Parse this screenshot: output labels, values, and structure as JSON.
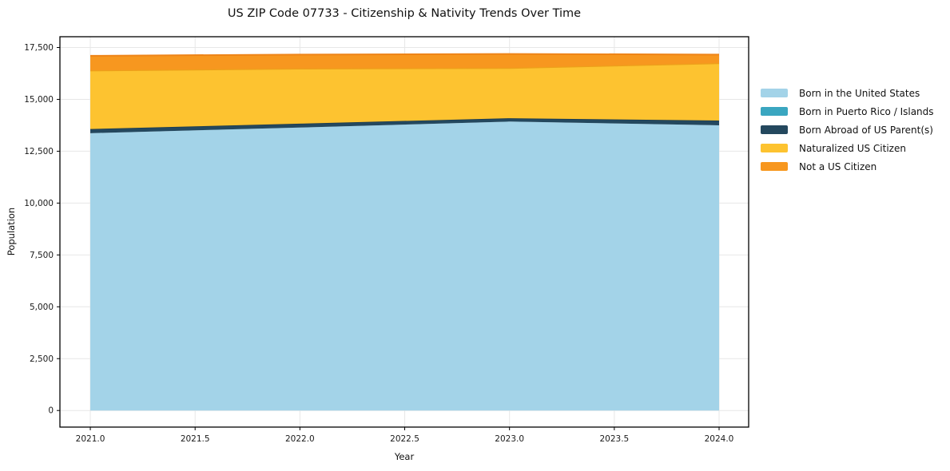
{
  "colors": {
    "background": "#ffffff",
    "grid": "#e7e7e7",
    "spine": "#000000",
    "text": "#1a1a1a"
  },
  "chart_data": {
    "type": "area",
    "stacked": true,
    "title": "US ZIP Code 07733 - Citizenship & Nativity Trends Over Time",
    "xlabel": "Year",
    "ylabel": "Population",
    "legend_position": "right-outside",
    "grid": true,
    "x": [
      2021,
      2022,
      2023,
      2024
    ],
    "series": [
      {
        "name": "Born in the United States",
        "color": "#a3d3e8",
        "values": [
          13370,
          13640,
          13930,
          13750
        ]
      },
      {
        "name": "Born in Puerto Rico / Islands",
        "color": "#3aa6c0",
        "values": [
          0,
          0,
          0,
          0
        ]
      },
      {
        "name": "Born Abroad of US Parent(s)",
        "color": "#24485e",
        "edge": "#1d3c4e",
        "edge_width": 1.5,
        "values": [
          200,
          190,
          160,
          230
        ]
      },
      {
        "name": "Naturalized US Citizen",
        "color": "#fdc330",
        "edge": "#eda01a",
        "edge_width": 2.5,
        "values": [
          2830,
          2660,
          2430,
          2770
        ]
      },
      {
        "name": "Not a US Citizen",
        "color": "#f7971f",
        "edge": "#ee8418",
        "edge_width": 2,
        "values": [
          700,
          670,
          670,
          410
        ]
      }
    ],
    "xlim": [
      2020.855,
      2024.141
    ],
    "ylim": [
      -800,
      18020
    ],
    "x_ticks": {
      "values": [
        2021,
        2021.5,
        2022,
        2022.5,
        2023,
        2023.5,
        2024
      ],
      "labels": [
        "2021.0",
        "2021.5",
        "2022.0",
        "2022.5",
        "2023.0",
        "2023.5",
        "2024.0"
      ]
    },
    "y_ticks": {
      "values": [
        0,
        2500,
        5000,
        7500,
        10000,
        12500,
        15000,
        17500
      ],
      "labels": [
        "0",
        "2,500",
        "5,000",
        "7,500",
        "10,000",
        "12,500",
        "15,000",
        "17,500"
      ]
    }
  }
}
